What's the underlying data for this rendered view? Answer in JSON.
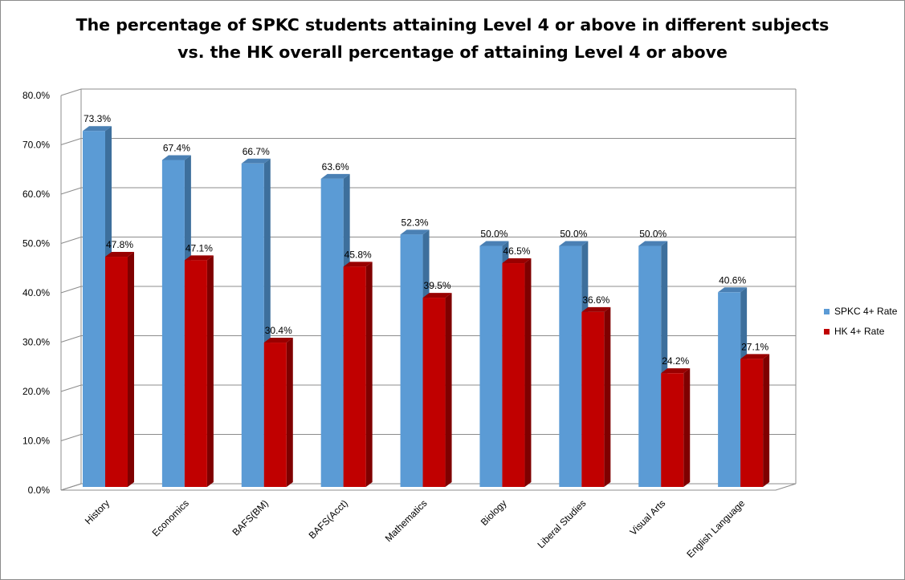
{
  "chart_data": {
    "type": "bar",
    "title_line1": "The percentage of SPKC students attaining Level 4 or above in different subjects",
    "title_line2": "vs. the HK overall percentage of attaining Level 4 or above",
    "categories": [
      "History",
      "Economics",
      "BAFS(BM)",
      "BAFS(Acct)",
      "Mathematics",
      "Biology",
      "Liberal Studies",
      "Visual Arts",
      "English Language"
    ],
    "series": [
      {
        "name": "SPKC 4+ Rate",
        "values": [
          73.3,
          67.4,
          66.7,
          63.6,
          52.3,
          50.0,
          50.0,
          50.0,
          40.6
        ],
        "labels": [
          "73.3%",
          "67.4%",
          "66.7%",
          "63.6%",
          "52.3%",
          "50.0%",
          "50.0%",
          "50.0%",
          "40.6%"
        ],
        "color": "#5b9bd5",
        "side_color": "#3d6f9c",
        "top_color": "#4a80b4"
      },
      {
        "name": "HK 4+ Rate",
        "values": [
          47.8,
          47.1,
          30.4,
          45.8,
          39.5,
          46.5,
          36.6,
          24.2,
          27.1
        ],
        "labels": [
          "47.8%",
          "47.1%",
          "30.4%",
          "45.8%",
          "39.5%",
          "46.5%",
          "36.6%",
          "24.2%",
          "27.1%"
        ],
        "color": "#c00000",
        "side_color": "#7f0000",
        "top_color": "#990000"
      }
    ],
    "yticks": [
      "0.0%",
      "10.0%",
      "20.0%",
      "30.0%",
      "40.0%",
      "50.0%",
      "60.0%",
      "70.0%",
      "80.0%"
    ],
    "ylim": [
      0,
      80
    ],
    "grid": true,
    "legend_position": "right"
  }
}
